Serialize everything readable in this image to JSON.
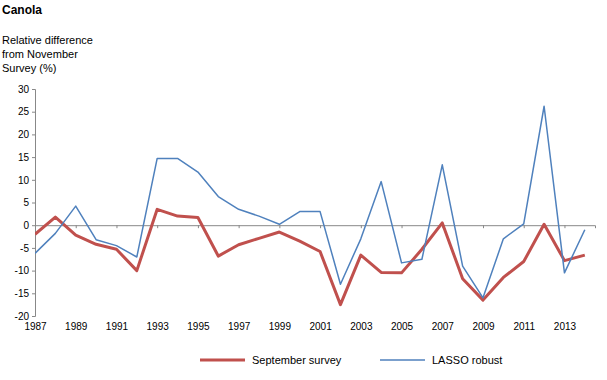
{
  "chart_data": {
    "type": "line",
    "title": "Canola",
    "ylabel": [
      "Relative difference",
      "from November",
      "Survey (%)"
    ],
    "x": [
      1987,
      1988,
      1989,
      1990,
      1991,
      1992,
      1993,
      1994,
      1995,
      1996,
      1997,
      1998,
      1999,
      2000,
      2001,
      2002,
      2003,
      2004,
      2005,
      2006,
      2007,
      2008,
      2009,
      2010,
      2011,
      2012,
      2013,
      2014
    ],
    "xlim": [
      1987,
      2014.5
    ],
    "xticks": [
      1987,
      1989,
      1991,
      1993,
      1995,
      1997,
      1999,
      2001,
      2003,
      2005,
      2007,
      2009,
      2011,
      2013
    ],
    "ylim": [
      -20,
      30
    ],
    "yticks": [
      -20,
      -15,
      -10,
      -5,
      0,
      5,
      10,
      15,
      20,
      25,
      30
    ],
    "grid": false,
    "legend": "bottom",
    "series": [
      {
        "name": "September survey",
        "color": "#c0504d",
        "values": [
          -2,
          1.8,
          -2.2,
          -4.2,
          -5.3,
          -10,
          3.5,
          2,
          1.7,
          -6.8,
          -4.3,
          -2.9,
          -1.5,
          -3.5,
          -5.8,
          -17.5,
          -6.6,
          -10.4,
          -10.5,
          -5.3,
          0.5,
          -11.8,
          -16.5,
          -11.5,
          -8,
          0.2,
          -7.8,
          -6.6
        ]
      },
      {
        "name": "LASSO robust",
        "color": "#4f81bd",
        "values": [
          -6.2,
          -1.8,
          4.2,
          -3.2,
          -4.5,
          -7,
          14.7,
          14.7,
          11.7,
          6.3,
          3.5,
          2,
          0.2,
          3,
          3,
          -13,
          -3,
          9.6,
          -8.3,
          -7.5,
          13.3,
          -9,
          -16,
          -3,
          0.3,
          26.2,
          -10.5,
          -1
        ]
      }
    ]
  }
}
